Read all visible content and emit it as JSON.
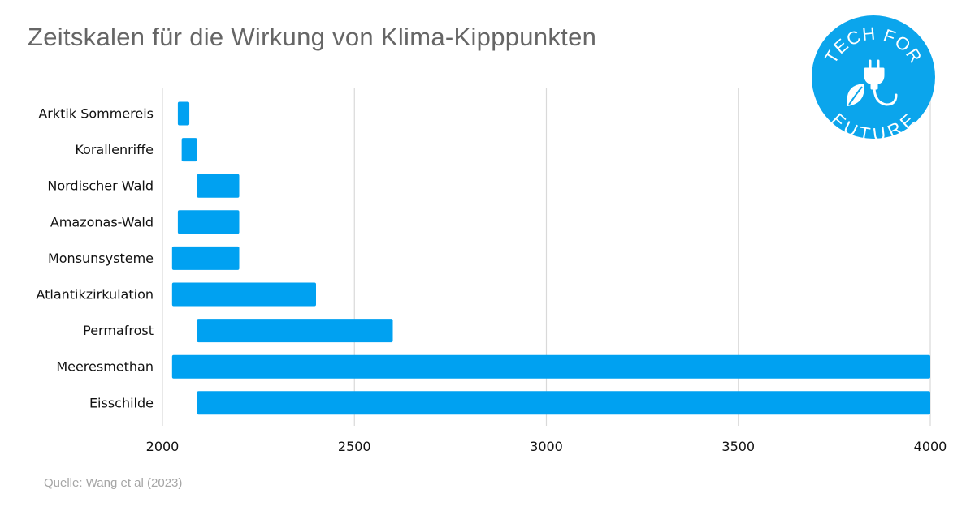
{
  "header": {
    "title": "Zeitskalen für die Wirkung von Klima-Kipppunkten"
  },
  "footer": {
    "source": "Quelle: Wang et al (2023)"
  },
  "logo": {
    "top_text": "TECH FOR",
    "bottom_text": "FUTURE",
    "icons": [
      "plug-icon",
      "leaf-icon"
    ],
    "color": "#0ba5ec"
  },
  "chart_data": {
    "type": "bar",
    "orientation": "horizontal",
    "title": "Zeitskalen für die Wirkung von Klima-Kipppunkten",
    "xlabel": "",
    "ylabel": "",
    "xlim": [
      2000,
      4000
    ],
    "xticks": [
      2000,
      2500,
      3000,
      3500,
      4000
    ],
    "grid": "vertical",
    "legend": "none",
    "bar_color": "#00a1f1",
    "categories": [
      "Arktik Sommereis",
      "Korallenriffe",
      "Nordischer Wald",
      "Amazonas-Wald",
      "Monsunsysteme",
      "Atlantikzirkulation",
      "Permafrost",
      "Meeresmethan",
      "Eisschilde"
    ],
    "ranges": [
      [
        2040,
        2070
      ],
      [
        2050,
        2090
      ],
      [
        2090,
        2200
      ],
      [
        2040,
        2200
      ],
      [
        2025,
        2200
      ],
      [
        2025,
        2400
      ],
      [
        2090,
        2600
      ],
      [
        2025,
        4000
      ],
      [
        2090,
        4000
      ]
    ]
  }
}
